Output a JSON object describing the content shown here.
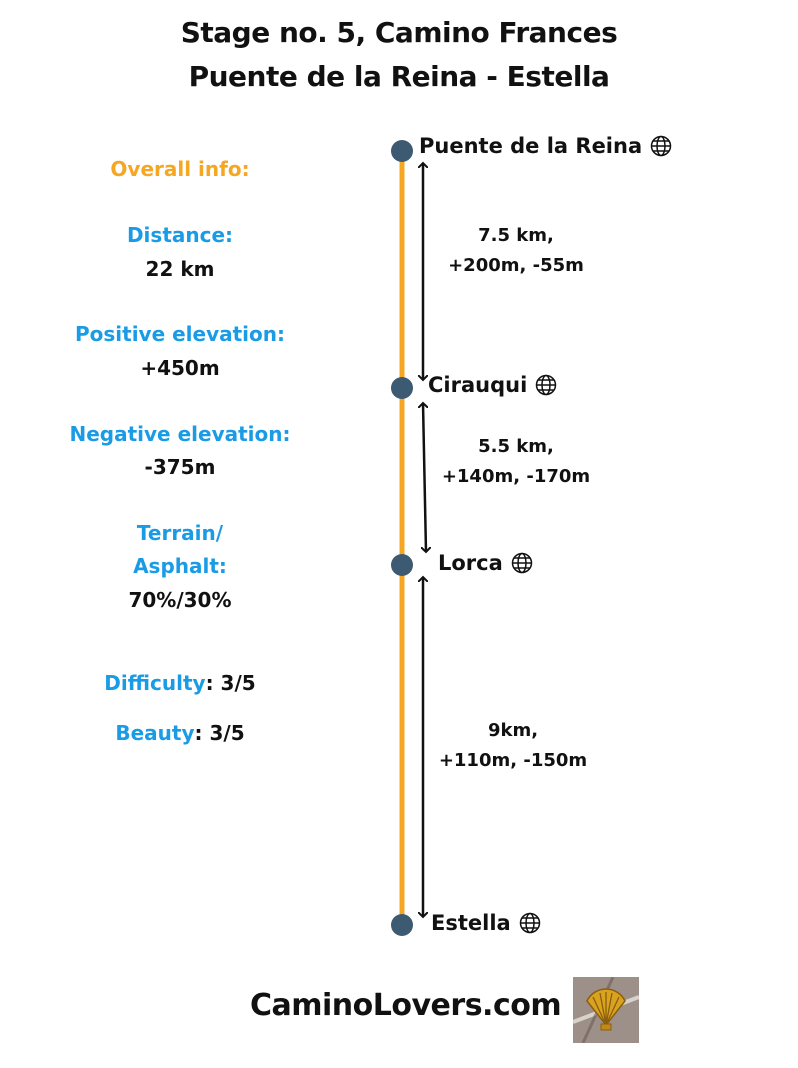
{
  "title": {
    "line1": "Stage no. 5, Camino Frances",
    "line2": "Puente de la Reina - Estella"
  },
  "overall_info": {
    "heading": "Overall info:",
    "distance_label": "Distance:",
    "distance_value": "22 km",
    "positive_label": "Positive elevation:",
    "positive_value": "+450m",
    "negative_label": "Negative elevation:",
    "negative_value": "-375m",
    "terrain_label_1": "Terrain/",
    "terrain_label_2": "Asphalt:",
    "terrain_value": "70%/30%",
    "difficulty_label": "Difficulty",
    "difficulty_value": ": 3/5",
    "beauty_label": "Beauty",
    "beauty_value": ": 3/5"
  },
  "stops": [
    {
      "name": "Puente de la Reina",
      "icon": "globe-icon"
    },
    {
      "name": "Cirauqui",
      "icon": "globe-icon"
    },
    {
      "name": "Lorca",
      "icon": "globe-icon"
    },
    {
      "name": "Estella",
      "icon": "globe-icon"
    }
  ],
  "segments": [
    {
      "line1": "7.5 km,",
      "line2": "+200m, -55m"
    },
    {
      "line1": "5.5 km,",
      "line2": "+140m, -170m"
    },
    {
      "line1": "9km,",
      "line2": "+110m, -150m"
    }
  ],
  "colors": {
    "route_line": "#f5a623",
    "stop_dot": "#3d5a73",
    "label_blue": "#1a9be6",
    "label_orange": "#f5a623"
  },
  "footer": {
    "site": "CaminoLovers.com",
    "logo_icon": "scallop-shell-icon"
  }
}
